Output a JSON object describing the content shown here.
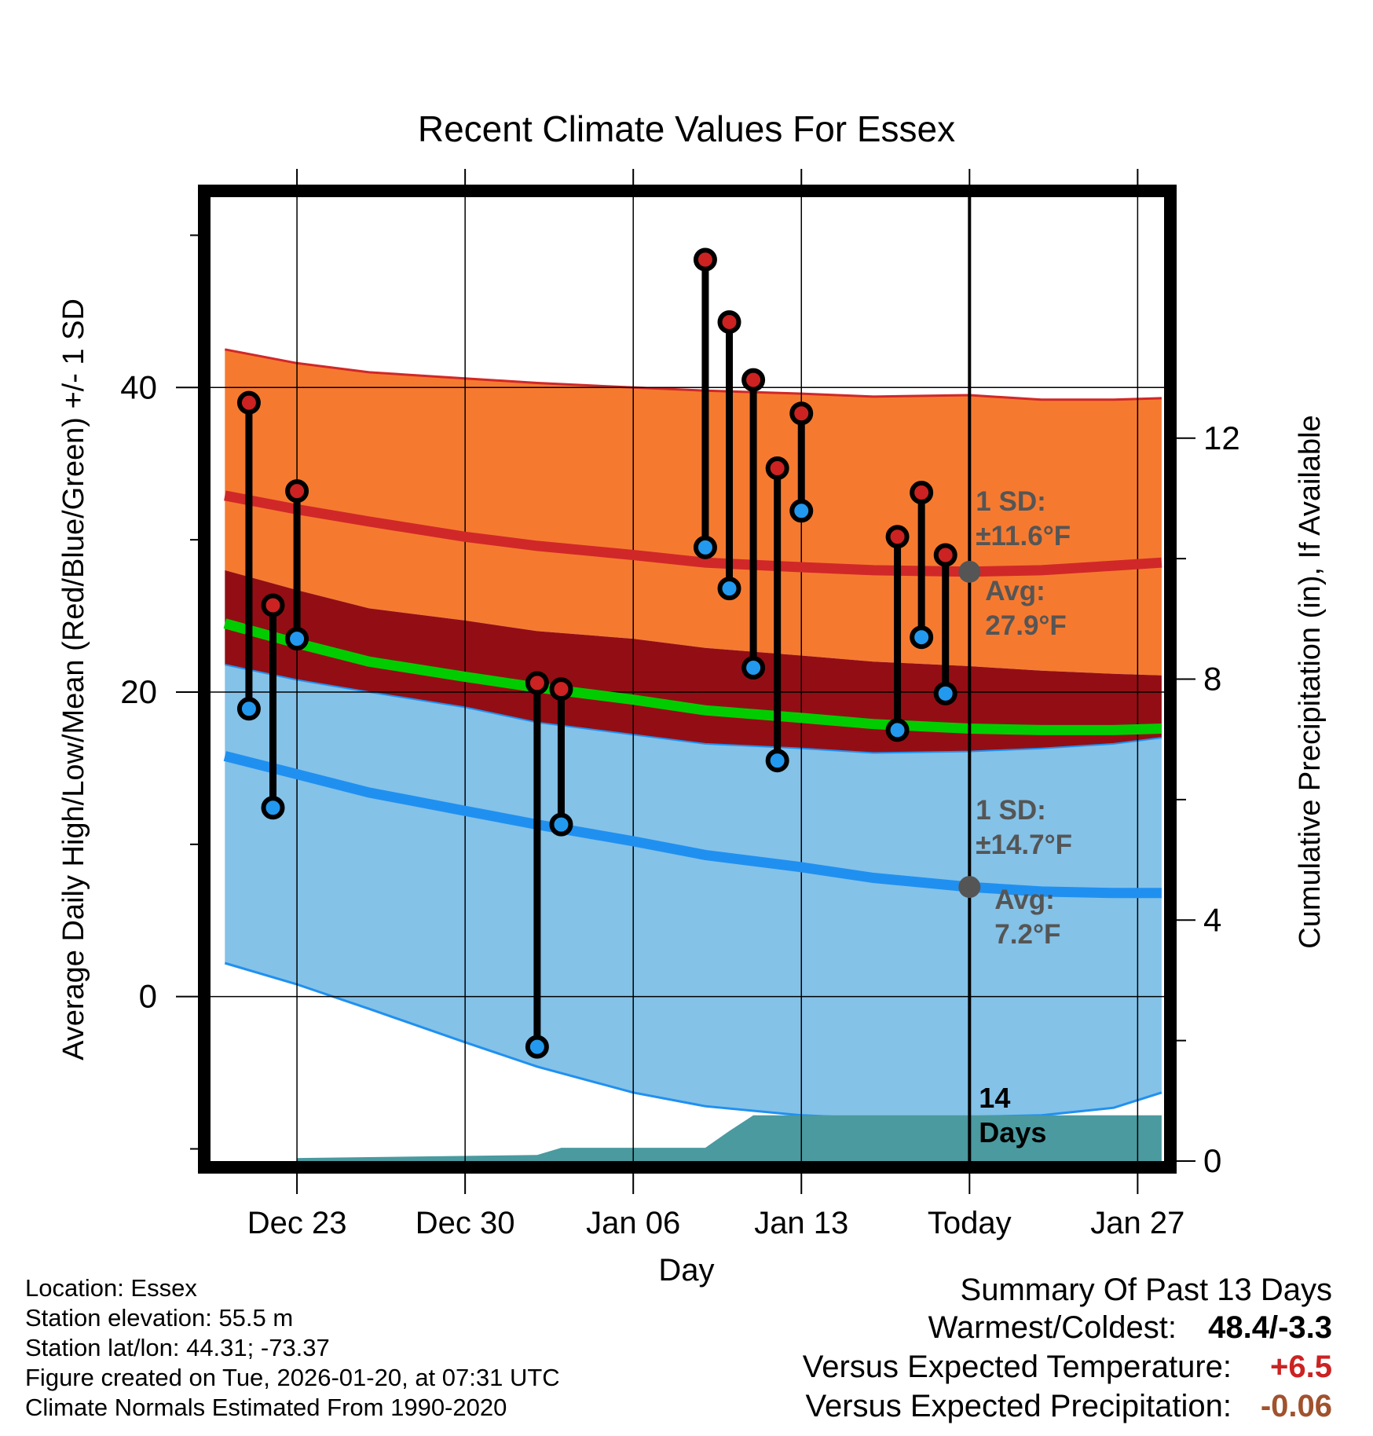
{
  "chart_data": {
    "type": "line",
    "title": "Recent Climate Values For Essex",
    "xlabel": "Day",
    "ylabel": "Average Daily High/Low/Mean (Red/Blue/Green) +/- 1 SD",
    "y2label": "Cumulative Precipitation (in), If Available",
    "xlim": [
      -3.6,
      36.1
    ],
    "ylim": [
      -10.8,
      52.5
    ],
    "y2lim": [
      0,
      16.0
    ],
    "x_tick_positions": [
      0,
      7,
      14,
      21,
      28,
      35
    ],
    "x_tick_labels": [
      "Dec 23",
      "Dec 30",
      "Jan 06",
      "Jan 13",
      "Today",
      "Jan 27"
    ],
    "y_ticks": [
      0,
      20,
      40
    ],
    "y_tick_labels": [
      "0",
      "20",
      "40"
    ],
    "y2_ticks": [
      0,
      4,
      8,
      12
    ],
    "y2_tick_labels": [
      "0",
      "4",
      "8",
      "12"
    ],
    "today_x": 28,
    "days_label": "14",
    "days_label2": "Days",
    "normal_x": [
      -3,
      0,
      3,
      7,
      10,
      14,
      17,
      21,
      24,
      28,
      31,
      34,
      36
    ],
    "normal_high": [
      32.9,
      32.0,
      31.2,
      30.2,
      29.6,
      29.0,
      28.5,
      28.2,
      28.0,
      27.9,
      28.0,
      28.3,
      28.5
    ],
    "normal_high_plus_sd": [
      42.5,
      41.6,
      41.0,
      40.6,
      40.3,
      40.0,
      39.8,
      39.6,
      39.4,
      39.5,
      39.2,
      39.2,
      39.3
    ],
    "normal_high_minus_sd": [
      28.0,
      26.7,
      25.5,
      24.7,
      24.0,
      23.5,
      22.9,
      22.4,
      22.0,
      21.7,
      21.4,
      21.2,
      21.1
    ],
    "normal_mean": [
      24.5,
      23.2,
      22.0,
      21.0,
      20.3,
      19.5,
      18.8,
      18.3,
      17.9,
      17.6,
      17.5,
      17.5,
      17.6
    ],
    "normal_low": [
      15.8,
      14.6,
      13.4,
      12.2,
      11.3,
      10.2,
      9.3,
      8.5,
      7.8,
      7.2,
      6.9,
      6.8,
      6.8
    ],
    "normal_low_plus_sd": [
      21.8,
      20.8,
      20.0,
      19.0,
      18.0,
      17.2,
      16.6,
      16.3,
      16.0,
      16.1,
      16.3,
      16.6,
      17.0
    ],
    "normal_low_minus_sd": [
      2.2,
      0.8,
      -0.8,
      -3.0,
      -4.6,
      -6.3,
      -7.2,
      -7.8,
      -8.0,
      -7.9,
      -7.8,
      -7.3,
      -6.3
    ],
    "series": [
      {
        "name": "Observed High",
        "x": [
          -2,
          -1,
          0,
          10,
          11,
          17,
          18,
          19,
          20,
          21,
          25,
          26,
          27
        ],
        "values": [
          39.0,
          25.7,
          33.2,
          20.6,
          20.2,
          48.4,
          44.3,
          40.5,
          34.7,
          38.3,
          30.2,
          33.1,
          29.0
        ]
      },
      {
        "name": "Observed Low",
        "x": [
          -2,
          -1,
          0,
          10,
          11,
          17,
          18,
          19,
          20,
          21,
          25,
          26,
          27
        ],
        "values": [
          18.9,
          12.4,
          23.5,
          -3.3,
          11.3,
          29.5,
          26.8,
          21.6,
          15.5,
          31.9,
          17.5,
          23.6,
          19.9
        ]
      },
      {
        "name": "Cumulative Precipitation",
        "x": [
          0,
          10,
          11,
          17,
          18,
          19,
          36
        ],
        "values": [
          0.05,
          0.1,
          0.22,
          0.22,
          0.5,
          0.76,
          0.76
        ]
      }
    ],
    "annotations": {
      "high_sd_label": "1 SD:",
      "high_sd_value": "±11.6°F",
      "high_avg_label": "Avg:",
      "high_avg_value": "27.9°F",
      "low_sd_label": "1 SD:",
      "low_sd_value": "±14.7°F",
      "low_avg_label": "Avg:",
      "low_avg_value": "7.2°F",
      "high_avg_point": 27.9,
      "low_avg_point": 7.2
    },
    "colors": {
      "high_band": "#f57a30",
      "high_line": "#d02828",
      "overlap_band": "#930e14",
      "low_band": "#84c2e8",
      "low_line": "#2090f0",
      "mean_line": "#00cc00",
      "precip": "#4a9aa0",
      "annotation": "#555555",
      "high_marker": "#cc2222",
      "low_marker": "#2299ee"
    }
  },
  "station_info": {
    "location": "Location: Essex",
    "elevation": "Station elevation: 55.5 m",
    "latlon": "Station lat/lon: 44.31; -73.37",
    "created": "Figure created on Tue, 2026-01-20, at 07:31 UTC",
    "normals": "Climate Normals Estimated From 1990-2020"
  },
  "summary": {
    "title": "Summary Of Past 13 Days",
    "warmest_label": "Warmest/Coldest:",
    "warmest_value": "48.4/-3.3",
    "temp_label": "Versus Expected Temperature:",
    "temp_value": "+6.5",
    "temp_color": "#cc2222",
    "precip_label": "Versus Expected Precipitation:",
    "precip_value": "-0.06",
    "precip_color": "#a0522d"
  }
}
